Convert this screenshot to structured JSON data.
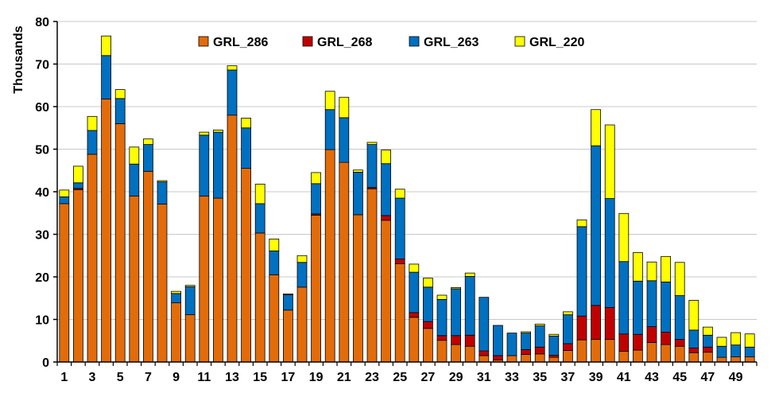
{
  "chart_data": {
    "type": "bar",
    "stacked": true,
    "ylabel": "Thousands",
    "ylim": [
      0,
      80
    ],
    "y_ticks": [
      0,
      10,
      20,
      30,
      40,
      50,
      60,
      70,
      80
    ],
    "x_tick_labels": [
      "1",
      "3",
      "5",
      "7",
      "9",
      "11",
      "13",
      "15",
      "17",
      "19",
      "21",
      "23",
      "25",
      "27",
      "29",
      "31",
      "33",
      "35",
      "37",
      "39",
      "41",
      "43",
      "45",
      "47",
      "49"
    ],
    "grid": true,
    "legend_position": "top",
    "categories": [
      1,
      2,
      3,
      4,
      5,
      6,
      7,
      8,
      9,
      10,
      11,
      12,
      13,
      14,
      15,
      16,
      17,
      18,
      19,
      20,
      21,
      22,
      23,
      24,
      25,
      26,
      27,
      28,
      29,
      30,
      31,
      32,
      33,
      34,
      35,
      36,
      37,
      38,
      39,
      40,
      41,
      42,
      43,
      44,
      45,
      46,
      47,
      48,
      49,
      50
    ],
    "series": [
      {
        "name": "GRL_286",
        "color": "#E36C0A",
        "values": [
          37.2,
          40.5,
          48.8,
          61.8,
          56,
          39,
          44.8,
          37.1,
          13.9,
          11.1,
          39,
          38.5,
          58,
          45.5,
          30.3,
          20.5,
          12.2,
          17.6,
          34.5,
          49.9,
          46.9,
          34.6,
          40.7,
          33.3,
          23.1,
          10.5,
          7.9,
          5.1,
          4.1,
          3.7,
          1.5,
          0.5,
          1.5,
          1.8,
          1.9,
          1.1,
          2.7,
          5.2,
          5.3,
          5.3,
          2.5,
          2.8,
          4.6,
          4.1,
          3.7,
          2.2,
          2.3,
          1.1,
          1.2,
          1.2
        ]
      },
      {
        "name": "GRL_268",
        "color": "#C00000",
        "values": [
          0,
          0.3,
          0,
          0,
          0,
          0,
          0,
          0,
          0,
          0,
          0,
          0,
          0,
          0,
          0,
          0,
          0,
          0,
          0.3,
          0,
          0,
          0,
          0.3,
          1.1,
          1.1,
          1.1,
          1.6,
          1.1,
          2.1,
          2.6,
          1.1,
          1.0,
          0,
          1.1,
          1.6,
          0.5,
          1.6,
          5.6,
          8.0,
          7.5,
          4.1,
          3.7,
          3.7,
          2.9,
          1.6,
          1.1,
          1.2,
          0,
          0,
          0
        ]
      },
      {
        "name": "GRL_263",
        "color": "#0070C0",
        "values": [
          1.6,
          1.3,
          5.6,
          10.2,
          5.9,
          7.5,
          6.3,
          5.2,
          2.2,
          6.6,
          14.3,
          15.5,
          10.6,
          9.5,
          6.9,
          5.6,
          3.6,
          5.8,
          7.1,
          9.4,
          10.5,
          10.0,
          10.1,
          12.2,
          14.3,
          9.5,
          8.1,
          8.5,
          11.0,
          13.8,
          12.6,
          7.1,
          5.3,
          3.9,
          5.0,
          4.5,
          6.8,
          21,
          37.5,
          25.6,
          17,
          12.5,
          10.8,
          11.8,
          10.3,
          4.2,
          2.8,
          2.6,
          2.8,
          2.3
        ]
      },
      {
        "name": "GRL_220",
        "color": "#FFFF00",
        "values": [
          1.6,
          3.9,
          3.3,
          4.6,
          2.1,
          4.0,
          1.3,
          0.3,
          0.5,
          0.3,
          0.7,
          0.5,
          1.0,
          2.3,
          4.6,
          2.8,
          0.2,
          1.6,
          2.6,
          4.3,
          4.8,
          0.5,
          0.5,
          3.2,
          2.1,
          1.9,
          2.1,
          1.0,
          0.3,
          0.8,
          0,
          0,
          0,
          0.3,
          0.4,
          0.4,
          0.7,
          1.6,
          8.5,
          17.3,
          11.3,
          6.7,
          4.4,
          6.0,
          7.8,
          7.0,
          1.9,
          2.1,
          2.9,
          3.1
        ]
      }
    ]
  }
}
